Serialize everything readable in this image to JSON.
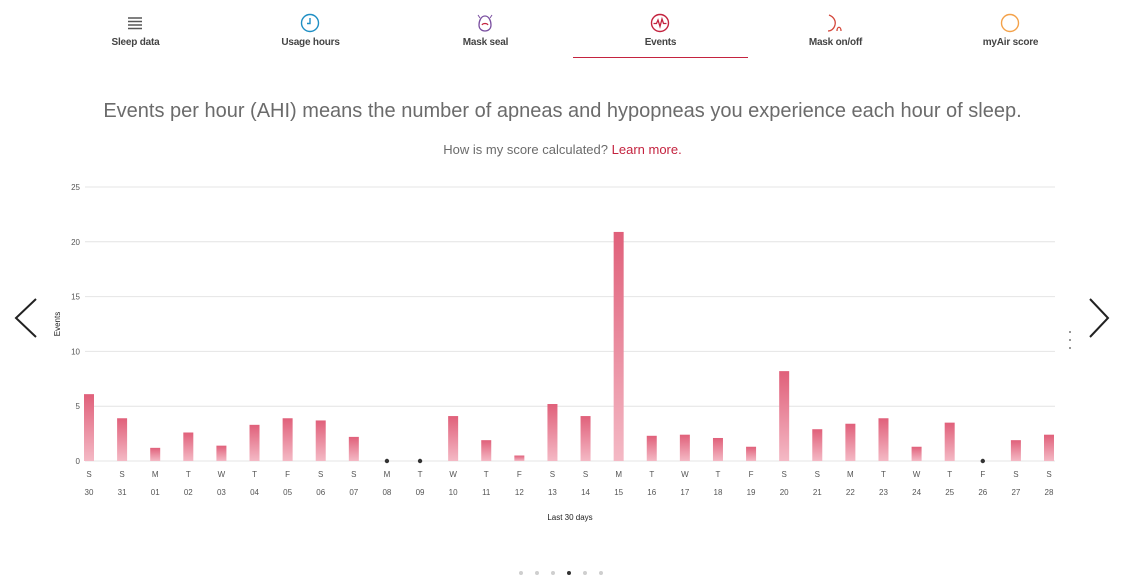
{
  "tabs": [
    {
      "label": "Sleep data",
      "icon": "list-icon",
      "color": "#555555",
      "active": false
    },
    {
      "label": "Usage hours",
      "icon": "clock-icon",
      "color": "#1f8fc4",
      "active": false
    },
    {
      "label": "Mask seal",
      "icon": "mask-icon",
      "color": "#7a4fa0",
      "active": false
    },
    {
      "label": "Events",
      "icon": "pulse-icon",
      "color": "#c4233f",
      "active": true
    },
    {
      "label": "Mask on/off",
      "icon": "mask-on-off-icon",
      "color": "#d4483c",
      "active": false
    },
    {
      "label": "myAir score",
      "icon": "score-ring-icon",
      "color": "#f4a24a",
      "active": false
    }
  ],
  "headline": "Events per hour (AHI) means the number of apneas and hypopneas you experience each hour of sleep.",
  "sub_question": "How is my score calculated?",
  "sub_link": "Learn more.",
  "pagination": {
    "count": 6,
    "active": 3
  },
  "colors": {
    "accent": "#c4233f",
    "bar_top": "#e0607a",
    "bar_bottom": "#f4b9c5",
    "grid": "#e4e4e4",
    "text": "#555555"
  },
  "chart_data": {
    "type": "bar",
    "ylabel": "Events",
    "xlabel": "Last 30 days",
    "ylim": [
      0,
      25
    ],
    "yticks": [
      0,
      5,
      10,
      15,
      20,
      25
    ],
    "grid": true,
    "weekdays": [
      "S",
      "S",
      "M",
      "T",
      "W",
      "T",
      "F",
      "S",
      "S",
      "M",
      "T",
      "W",
      "T",
      "F",
      "S",
      "S",
      "M",
      "T",
      "W",
      "T",
      "F",
      "S",
      "S",
      "M",
      "T",
      "W",
      "T",
      "F",
      "S",
      "S"
    ],
    "categories": [
      "30",
      "31",
      "01",
      "02",
      "03",
      "04",
      "05",
      "06",
      "07",
      "08",
      "09",
      "10",
      "11",
      "12",
      "13",
      "14",
      "15",
      "16",
      "17",
      "18",
      "19",
      "20",
      "21",
      "22",
      "23",
      "24",
      "25",
      "26",
      "27",
      "28"
    ],
    "values": [
      6.1,
      3.9,
      1.2,
      2.6,
      1.4,
      3.3,
      3.9,
      3.7,
      2.2,
      null,
      null,
      4.1,
      1.9,
      0.5,
      5.2,
      4.1,
      20.9,
      2.3,
      2.4,
      2.1,
      1.3,
      8.2,
      2.9,
      3.4,
      3.9,
      1.3,
      3.5,
      null,
      1.9,
      2.4
    ]
  }
}
